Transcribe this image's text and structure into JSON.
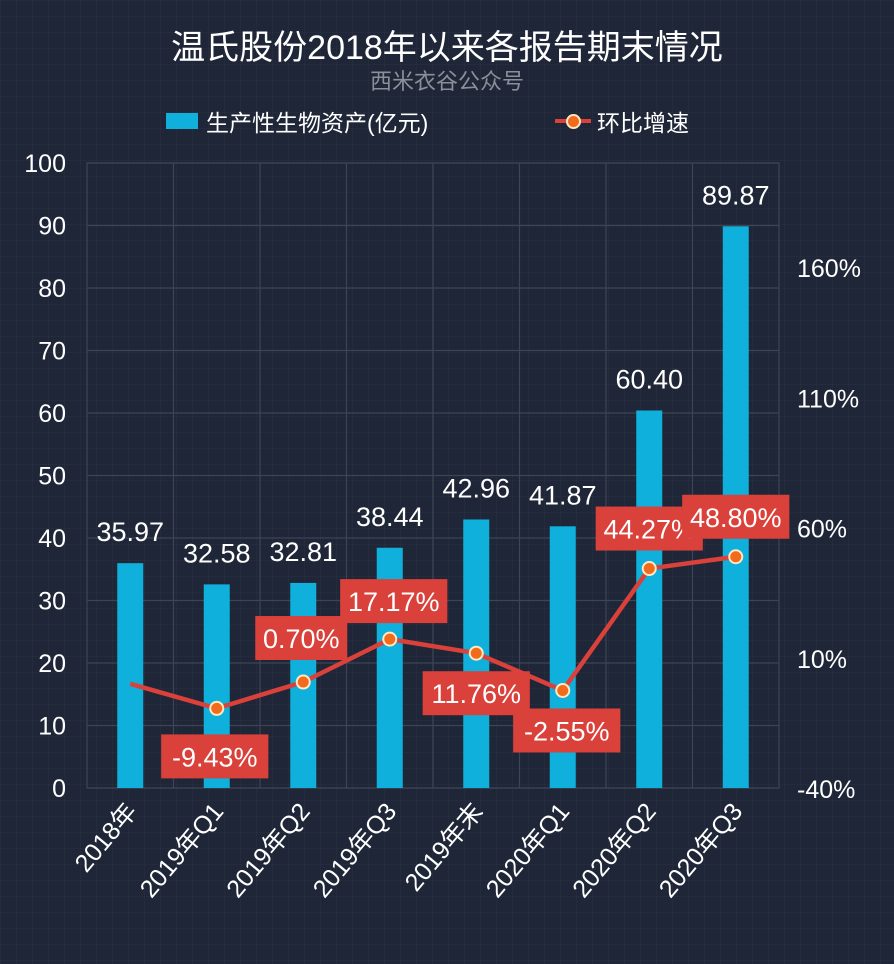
{
  "header": {
    "title": "温氏股份2018年以来各报告期末情况",
    "subtitle": "西米衣谷公众号"
  },
  "legend": {
    "bar_label": "生产性生物资产(亿元)",
    "line_label": "环比增速"
  },
  "colors": {
    "background": "#1f2637",
    "bar": "#0fb1dc",
    "line": "#d9413a",
    "marker": "#f26a1b",
    "label_box": "#d9413a",
    "gridline": "#3c4456"
  },
  "chart_data": {
    "type": "bar+line",
    "title": "温氏股份2018年以来各报告期末情况",
    "subtitle": "西米衣谷公众号",
    "categories": [
      "2018年",
      "2019年Q1",
      "2019年Q2",
      "2019年Q3",
      "2019年末",
      "2020年Q1",
      "2020年Q2",
      "2020年Q3"
    ],
    "series": [
      {
        "name": "生产性生物资产(亿元)",
        "type": "bar",
        "axis": "left",
        "values": [
          35.97,
          32.58,
          32.81,
          38.44,
          42.96,
          41.87,
          60.4,
          89.87
        ],
        "labels": [
          "35.97",
          "32.58",
          "32.81",
          "38.44",
          "42.96",
          "41.87",
          "60.40",
          "89.87"
        ]
      },
      {
        "name": "环比增速",
        "type": "line",
        "axis": "right",
        "values": [
          0,
          -9.43,
          0.7,
          17.17,
          11.76,
          -2.55,
          44.27,
          48.8
        ],
        "labels": [
          "",
          "-9.43%",
          "0.70%",
          "17.17%",
          "11.76%",
          "-2.55%",
          "44.27%",
          "48.80%"
        ]
      }
    ],
    "left_axis": {
      "min": 0,
      "max": 100,
      "ticks": [
        "0",
        "10",
        "20",
        "30",
        "40",
        "50",
        "60",
        "70",
        "80",
        "90",
        "100"
      ]
    },
    "right_axis": {
      "min": -40,
      "max": 200,
      "ticks": [
        "-40%",
        "10%",
        "60%",
        "110%",
        "160%"
      ]
    },
    "xlabel": "",
    "ylabel": "",
    "grid": true,
    "legend_position": "top"
  }
}
